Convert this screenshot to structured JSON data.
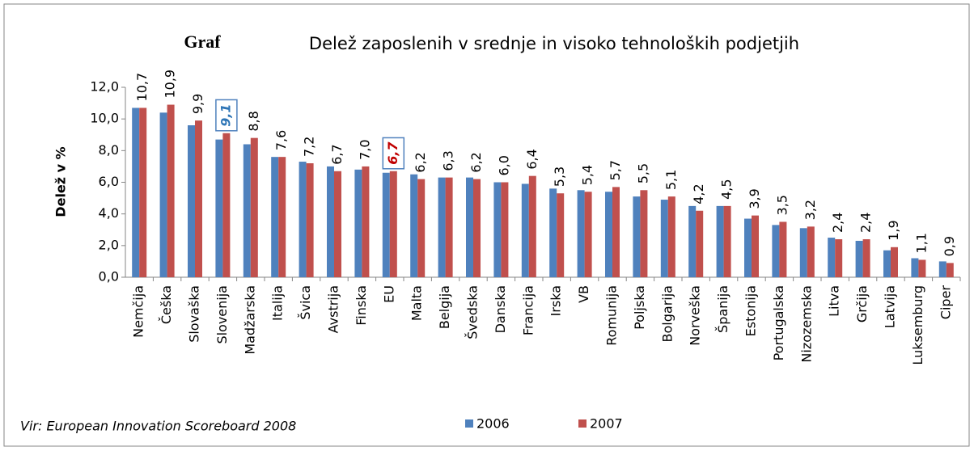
{
  "chart_data": {
    "type": "bar",
    "title": "Delež zaposlenih v srednje in visoko tehnoloških podjetjih",
    "overlay_label": "Graf",
    "y_label": "Delež v %",
    "source": "Vir:  European Innovation Scoreboard 2008",
    "categories": [
      "Nemčija",
      "Češka",
      "Slovaška",
      "Slovenija",
      "Madžarska",
      "Italija",
      "Švica",
      "Avstrija",
      "Finska",
      "EU",
      "Malta",
      "Belgija",
      "Švedska",
      "Danska",
      "Francija",
      "Irska",
      "VB",
      "Romunija",
      "Poljska",
      "Bolgarija",
      "Norveška",
      "Španija",
      "Estonija",
      "Portugalska",
      "Nizozemska",
      "Litva",
      "Grčija",
      "Latvija",
      "Luksemburg",
      "Ciper"
    ],
    "series": [
      {
        "name": "2006",
        "color": "#4f81bd",
        "values": [
          10.7,
          10.4,
          9.6,
          8.7,
          8.4,
          7.6,
          7.3,
          7.0,
          6.8,
          6.6,
          6.5,
          6.3,
          6.3,
          6.0,
          5.9,
          5.6,
          5.5,
          5.4,
          5.1,
          4.9,
          4.5,
          4.5,
          3.7,
          3.3,
          3.1,
          2.5,
          2.3,
          1.7,
          1.2,
          1.0
        ]
      },
      {
        "name": "2007",
        "color": "#c0504d",
        "values": [
          10.7,
          10.9,
          9.9,
          9.1,
          8.8,
          7.6,
          7.2,
          6.7,
          7.0,
          6.7,
          6.2,
          6.3,
          6.2,
          6.0,
          6.4,
          5.3,
          5.4,
          5.7,
          5.5,
          5.1,
          4.2,
          4.5,
          3.9,
          3.5,
          3.2,
          2.4,
          2.4,
          1.9,
          1.1,
          0.9
        ],
        "value_labels": [
          "10,7",
          "10,9",
          "9,9",
          "9,1",
          "8,8",
          "7,6",
          "7,2",
          "6,7",
          "7,0",
          "6,7",
          "6,2",
          "6,3",
          "6,2",
          "6,0",
          "6,4",
          "5,3",
          "5,4",
          "5,7",
          "5,5",
          "5,1",
          "4,2",
          "4,5",
          "3,9",
          "3,5",
          "3,2",
          "2,4",
          "2,4",
          "1,9",
          "1,1",
          "0,9"
        ]
      }
    ],
    "highlights": [
      {
        "category": 3,
        "color": "#2e75b6"
      },
      {
        "category": 9,
        "color": "#c00000"
      }
    ],
    "ylim": [
      0,
      12
    ],
    "yticks": [
      {
        "value": 0,
        "label": "0,0"
      },
      {
        "value": 2,
        "label": "2,0"
      },
      {
        "value": 4,
        "label": "4,0"
      },
      {
        "value": 6,
        "label": "6,0"
      },
      {
        "value": 8,
        "label": "8,0"
      },
      {
        "value": 10,
        "label": "10,0"
      },
      {
        "value": 12,
        "label": "12,0"
      }
    ],
    "grid": false
  }
}
